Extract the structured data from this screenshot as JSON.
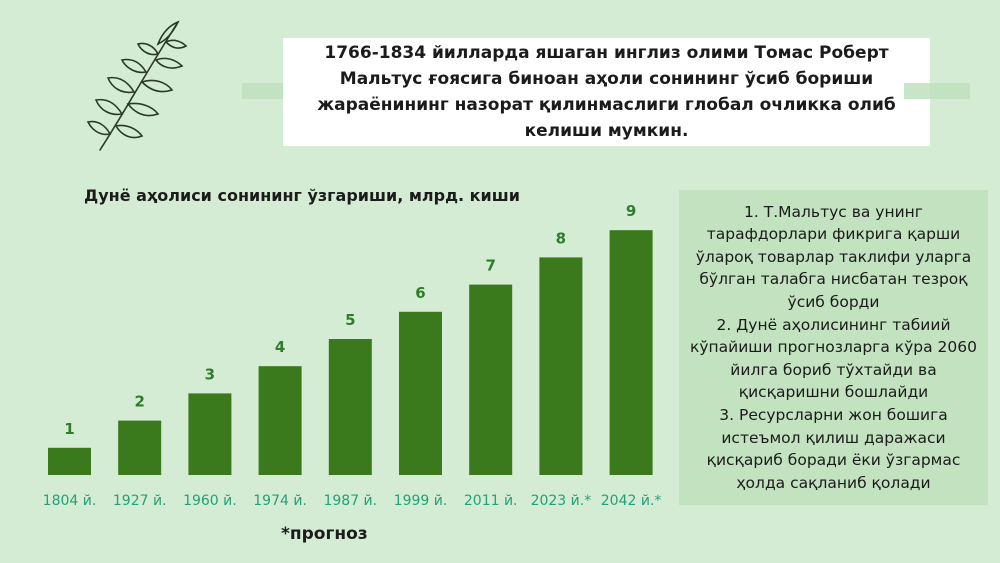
{
  "header": {
    "text": "1766-1834 йилларда яшаган инглиз олими Томас Роберт Мальтус ғоясига биноан аҳоли сонининг ўсиб бориши жараёнининг назорат қилинмаслиги глобал очликка олиб келиши мумкин."
  },
  "side_panel": {
    "items": [
      "1. Т.Мальтус ва унинг тарафдорлари фикрига қарши ўлароқ товарлар таклифи уларга бўлган талабга нисбатан тезроқ ўсиб борди",
      "2. Дунё аҳолисининг табиий кўпайиши прогнозларга кўра 2060 йилга бориб тўхтайди ва қисқаришни бошлайди",
      "3. Ресурсларни жон бошига истеъмол қилиш даражаси қисқариб боради ёки ўзгармас ҳолда сақланиб қолади"
    ]
  },
  "footnote": "*прогноз",
  "colors": {
    "bar": "#3b7a1c",
    "value_label": "#2f7d2a",
    "category_label": "#23a07a",
    "background": "#d5ecd4",
    "leaf": "#2a3a24"
  },
  "icons": {
    "decoration": "leaf-branch-icon"
  },
  "chart_data": {
    "type": "bar",
    "title": "Дунё аҳолиси сонининг ўзгариши, млрд. киши",
    "categories": [
      "1804 й.",
      "1927 й.",
      "1960 й.",
      "1974 й.",
      "1987 й.",
      "1999 й.",
      "2011 й.",
      "2023 й.*",
      "2042 й.*"
    ],
    "values": [
      1,
      2,
      3,
      4,
      5,
      6,
      7,
      8,
      9
    ],
    "data_labels": [
      "1",
      "2",
      "3",
      "4",
      "5",
      "6",
      "7",
      "8",
      "9"
    ],
    "ylim": [
      0,
      9
    ],
    "grid": false,
    "legend": "none"
  }
}
